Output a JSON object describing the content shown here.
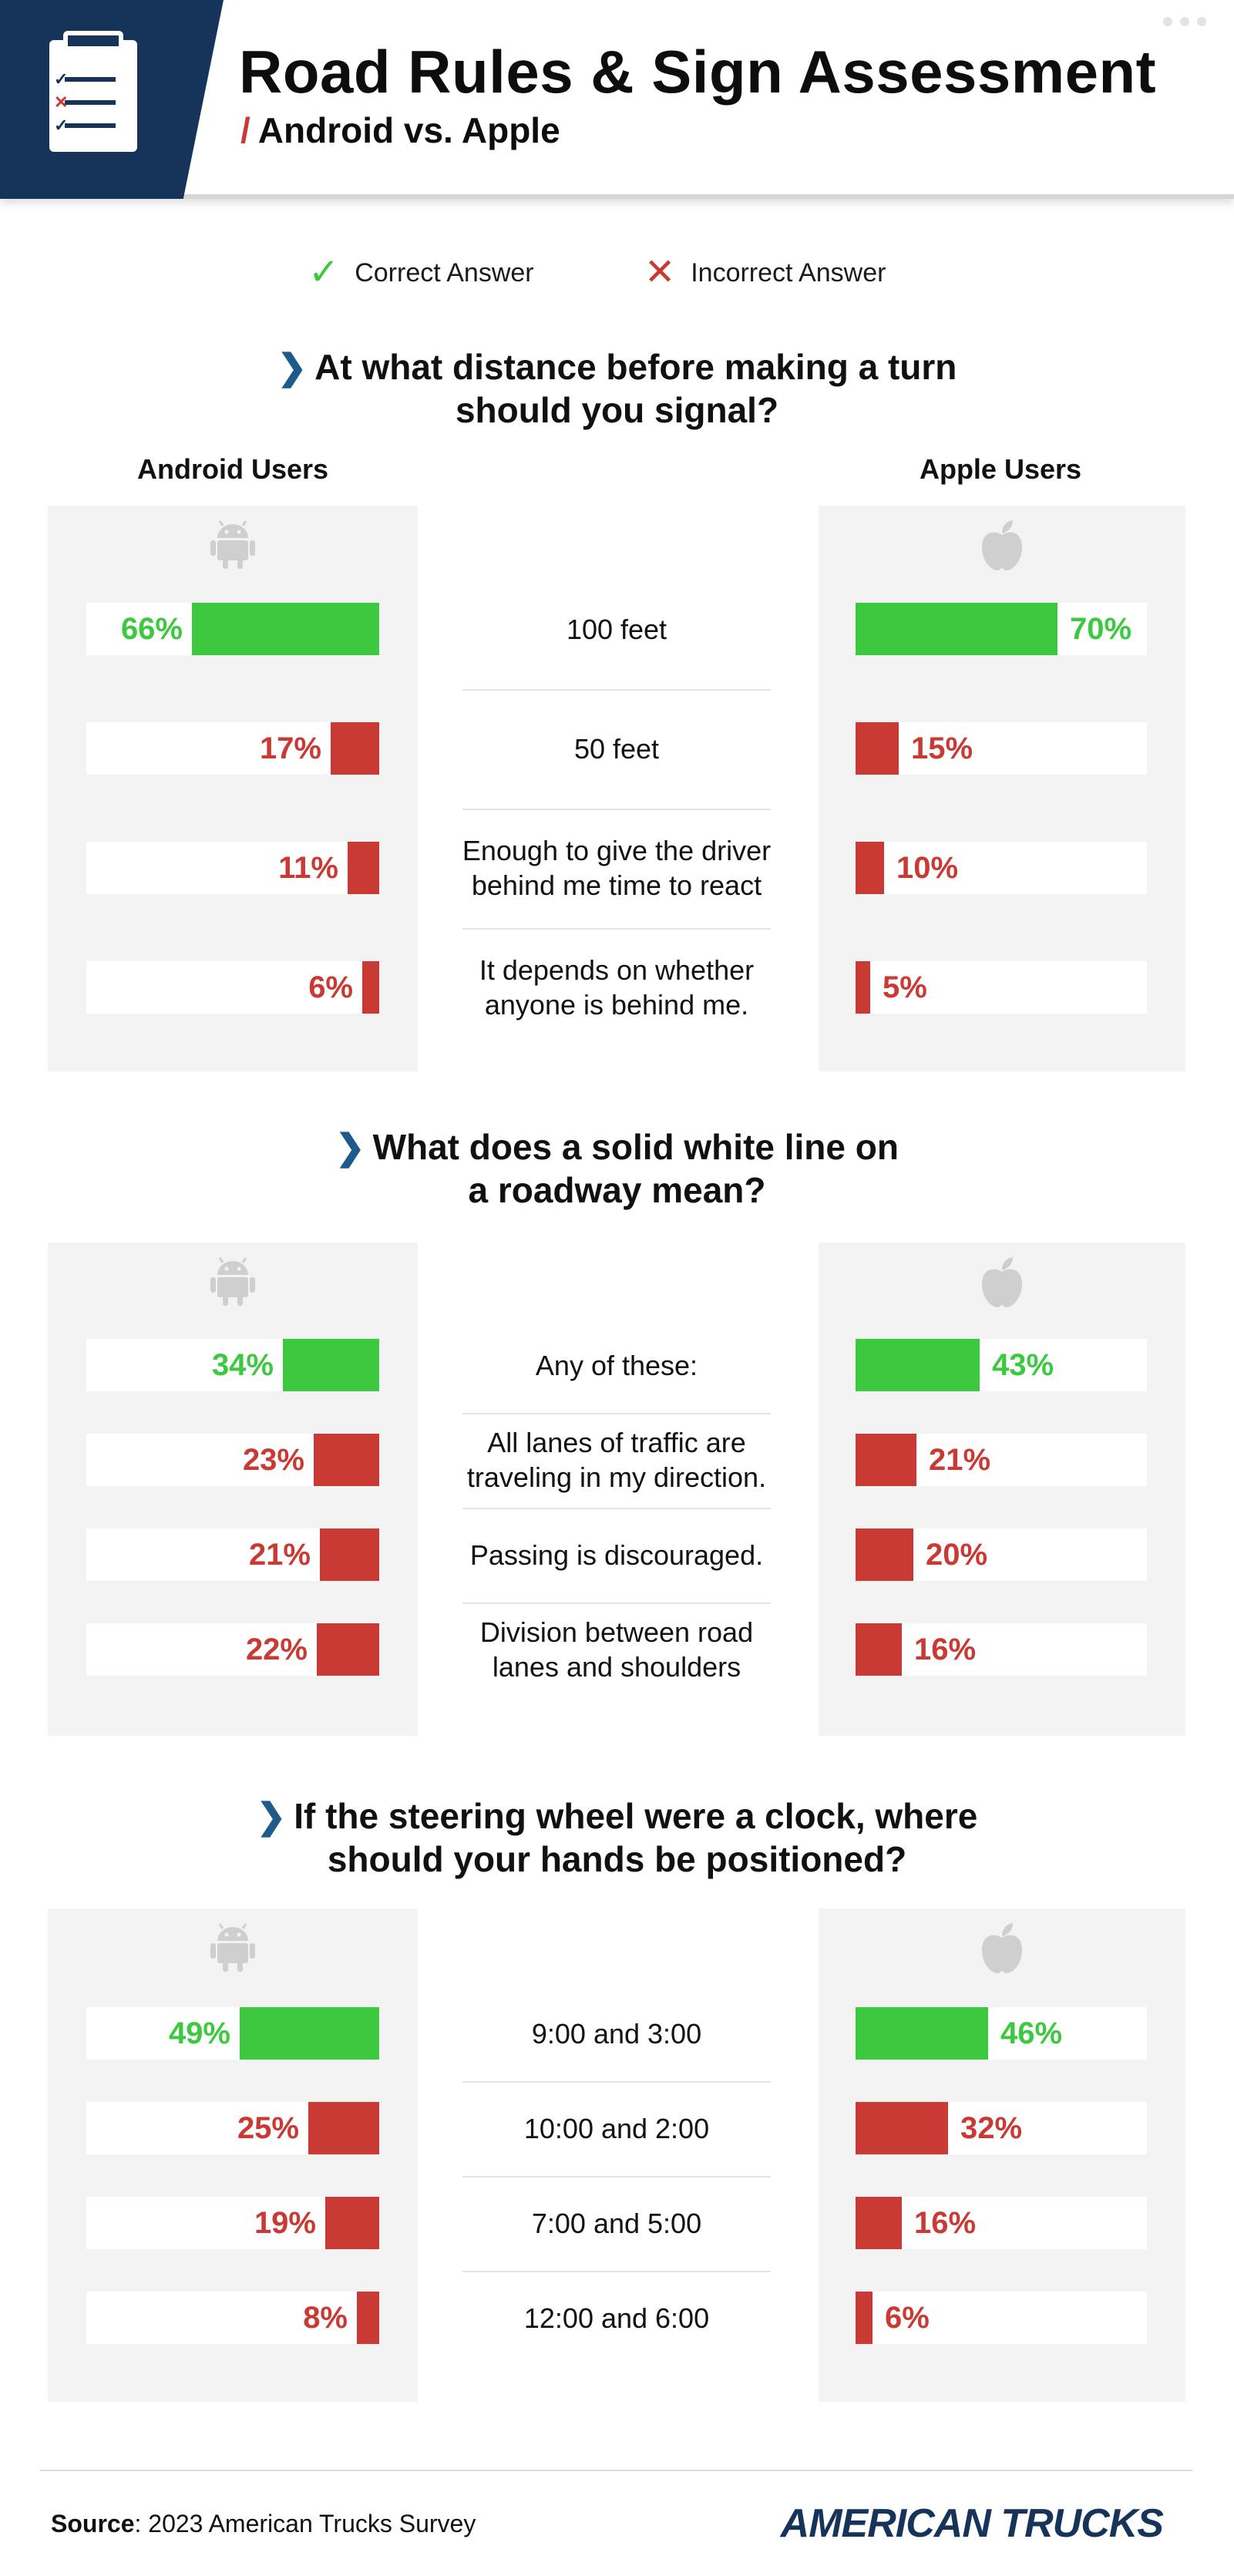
{
  "header": {
    "title": "Road Rules & Sign Assessment",
    "slash": "/",
    "subtitle": "Android vs. Apple"
  },
  "legend": {
    "correct_label": "Correct Answer",
    "incorrect_label": "Incorrect Answer",
    "correct_symbol": "✓",
    "incorrect_symbol": "✕"
  },
  "columns": {
    "android": "Android Users",
    "apple": "Apple Users"
  },
  "colors": {
    "correct": "#3cc83f",
    "incorrect": "#c83a33",
    "panel": "#f3f3f3",
    "navy": "#163459"
  },
  "chart_data": [
    {
      "type": "bar",
      "title": "At what distance before making a turn should you signal?",
      "categories": [
        "100 feet",
        "50 feet",
        "Enough to give the driver behind me time to react",
        "It depends on whether anyone is behind me."
      ],
      "correct": [
        true,
        false,
        false,
        false
      ],
      "series": [
        {
          "name": "Android Users",
          "values": [
            66,
            17,
            11,
            6
          ]
        },
        {
          "name": "Apple Users",
          "values": [
            70,
            15,
            10,
            5
          ]
        }
      ]
    },
    {
      "type": "bar",
      "title": "What does a solid white line on a roadway mean?",
      "categories": [
        "Any of these:",
        "All lanes of traffic are traveling in my direction.",
        "Passing is discouraged.",
        "Division between road lanes and shoulders"
      ],
      "correct": [
        true,
        false,
        false,
        false
      ],
      "series": [
        {
          "name": "Android Users",
          "values": [
            34,
            23,
            21,
            22
          ]
        },
        {
          "name": "Apple Users",
          "values": [
            43,
            21,
            20,
            16
          ]
        }
      ]
    },
    {
      "type": "bar",
      "title": "If the steering wheel were a clock, where should your hands be positioned?",
      "categories": [
        "9:00 and 3:00",
        "10:00 and 2:00",
        "7:00 and 5:00",
        "12:00 and 6:00"
      ],
      "correct": [
        true,
        false,
        false,
        false
      ],
      "series": [
        {
          "name": "Android Users",
          "values": [
            49,
            25,
            19,
            8
          ]
        },
        {
          "name": "Apple Users",
          "values": [
            46,
            32,
            16,
            6
          ]
        }
      ]
    }
  ],
  "questions": [
    {
      "line1": "At what distance before making a turn",
      "line2": "should you signal?"
    },
    {
      "line1": "What does a solid white line on",
      "line2": "a roadway mean?"
    },
    {
      "line1": "If the steering wheel were a clock, where",
      "line2": "should your hands be positioned?"
    }
  ],
  "icons": {
    "android": "android-icon",
    "apple": "apple-icon",
    "chevron": "chevron-right-icon",
    "clipboard": "clipboard-icon"
  },
  "footer": {
    "source_label": "Source",
    "source_text": ": 2023 American Trucks Survey",
    "brand": "AMERICAN TRUCKS"
  }
}
